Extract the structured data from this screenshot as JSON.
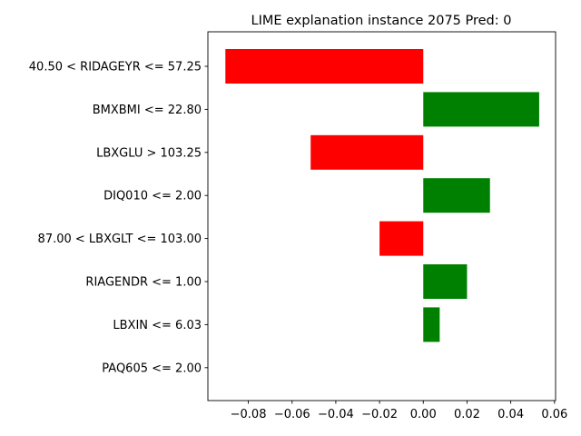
{
  "chart_data": {
    "type": "bar",
    "orientation": "horizontal",
    "title": "LIME explanation instance 2075 Pred: 0",
    "xlabel": "",
    "ylabel": "",
    "xlim": [
      -0.0985,
      0.0605
    ],
    "categories": [
      "40.50 < RIDAGEYR <= 57.25",
      "BMXBMI <= 22.80",
      "LBXGLU > 103.25",
      "DIQ010 <= 2.00",
      "87.00 < LBXGLT <= 103.00",
      "RIAGENDR <= 1.00",
      "LBXIN <= 6.03",
      "PAQ605 <= 2.00"
    ],
    "values": [
      -0.0905,
      0.053,
      -0.0515,
      0.0305,
      -0.02,
      0.02,
      0.0075,
      0.0
    ],
    "xticks": [
      -0.08,
      -0.06,
      -0.04,
      -0.02,
      0.0,
      0.02,
      0.04,
      0.06
    ],
    "xtick_labels": [
      "−0.08",
      "−0.06",
      "−0.04",
      "−0.02",
      "0.00",
      "0.02",
      "0.04",
      "0.06"
    ],
    "colors": {
      "negative": "#ff0000",
      "positive": "#008000"
    },
    "grid": false,
    "legend": "none"
  }
}
